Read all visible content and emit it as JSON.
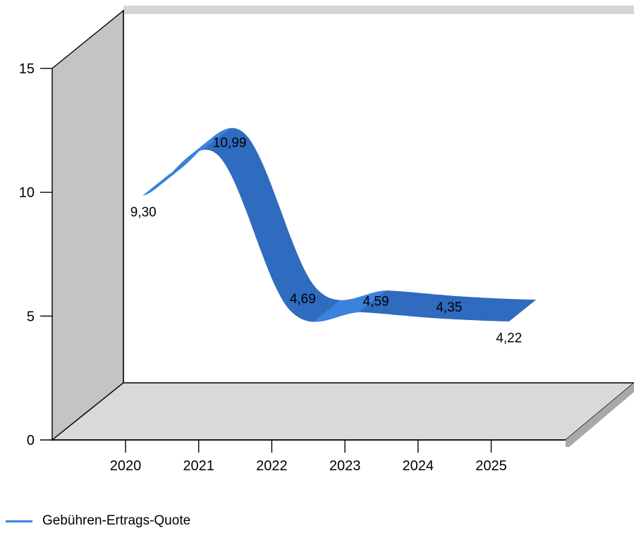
{
  "chart_data": {
    "type": "area",
    "three_d": true,
    "categories": [
      "2020",
      "2021",
      "2022",
      "2023",
      "2024",
      "2025"
    ],
    "series": [
      {
        "name": "Gebühren-Ertrags-Quote",
        "values": [
          9.3,
          10.99,
          4.69,
          4.59,
          4.35,
          4.22
        ],
        "data_labels": [
          "9,30",
          "10,99",
          "4,69",
          "4,59",
          "4,35",
          "4,22"
        ],
        "color": "#2f6bbf"
      }
    ],
    "y_ticks": [
      "0",
      "5",
      "10",
      "15"
    ],
    "ylim": [
      0,
      15
    ],
    "legend": "bottom-left",
    "grid": false,
    "colors": {
      "series_top": "#3b82dc",
      "series_front": "#2f6bbf",
      "wall": "#c4c4c4",
      "floor": "#d9d9d9",
      "frame": "#000000"
    }
  }
}
